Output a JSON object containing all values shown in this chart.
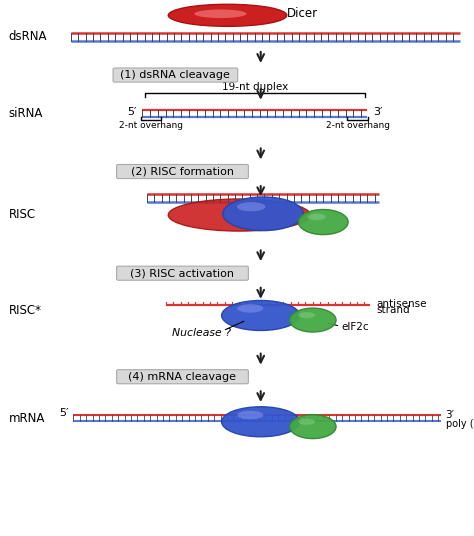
{
  "background_color": "#ffffff",
  "fig_width": 4.74,
  "fig_height": 5.36,
  "dpi": 100,
  "labels": {
    "dicer": "Dicer",
    "dsRNA": "dsRNA",
    "step1": "(1) dsRNA cleavage",
    "duplex": "19-nt duplex",
    "siRNA": "siRNA",
    "five_prime_1": "5′",
    "three_prime_1": "3′",
    "overhang_left": "2-nt overhang",
    "overhang_right": "2-nt overhang",
    "step2": "(2) RISC formation",
    "RISC": "RISC",
    "step3": "(3) RISC activation",
    "RISC_star": "RISC*",
    "antisense1": "antisense",
    "antisense2": "strand",
    "nuclease": "Nuclease ?",
    "eIF2c": "eIF2c",
    "step4": "(4) mRNA cleavage",
    "mRNA": "mRNA",
    "five_prime_2": "5′",
    "three_prime_2": "3′",
    "polyA": "poly (A)"
  },
  "colors": {
    "red_fill": "#cc2020",
    "red_edge": "#aa1010",
    "blue_fill": "#3355cc",
    "blue_edge": "#2244aa",
    "green_fill": "#44aa44",
    "green_edge": "#338833",
    "red_line": "#dd3333",
    "blue_line": "#5577dd",
    "tick_dark": "#444444",
    "arrow_color": "#222222",
    "step_box_bg": "#d8d8d8",
    "step_box_edge": "#aaaaaa",
    "text_color": "#000000"
  }
}
